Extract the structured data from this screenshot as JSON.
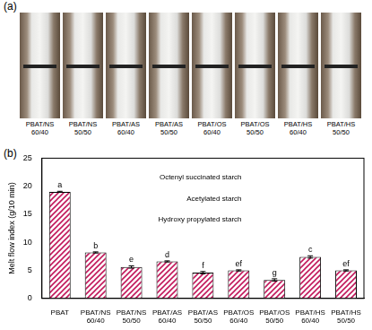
{
  "figure_labels": [
    "(a)",
    "(b)"
  ],
  "photo_captions": [
    "PBAT/NS 60/40",
    "PBAT/NS 50/50",
    "PBAT/AS 60/40",
    "PBAT/AS 50/50",
    "PBAT/OS 60/40",
    "PBAT/OS 50/50",
    "PBAT/HS 60/40",
    "PBAT/HS 50/50"
  ],
  "chart_data": {
    "type": "bar",
    "y_label": "Melt flow index (g/10 min)",
    "categories": [
      "PBAT",
      "PBAT/NS 60/40",
      "PBAT/NS 50/50",
      "PBAT/AS 60/40",
      "PBAT/AS 50/50",
      "PBAT/OS 60/40",
      "PBAT/OS 50/50",
      "PBAT/HS 60/40",
      "PBAT/HS 50/50"
    ],
    "values": [
      19.0,
      8.2,
      5.6,
      6.6,
      4.6,
      5.0,
      3.3,
      7.4,
      5.0
    ],
    "errors": [
      0.1,
      0.1,
      0.2,
      0.1,
      0.2,
      0.1,
      0.2,
      0.2,
      0.1
    ],
    "significance_labels": [
      "a",
      "b",
      "e",
      "d",
      "f",
      "ef",
      "g",
      "c",
      "ef"
    ],
    "annotations": [
      "Octenyl succinated starch",
      "Acetylated starch",
      "Hydroxy propylated starch"
    ],
    "color": "#c2185b",
    "ylim": [
      0,
      25
    ],
    "yticks": [
      0,
      5,
      10,
      15,
      20,
      25
    ],
    "grid": false
  }
}
